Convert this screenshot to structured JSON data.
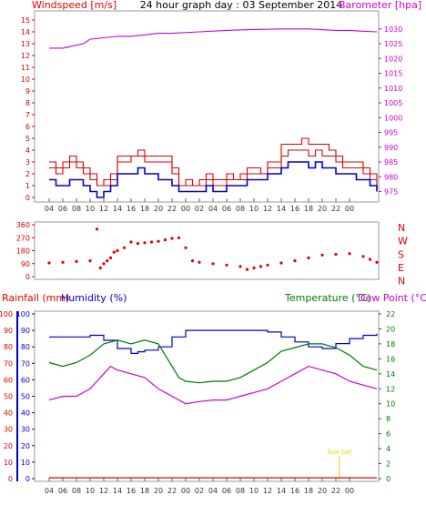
{
  "chart_data": [
    {
      "type": "line",
      "title": "24 hour graph day : 03 September 2014",
      "ylabel": "Windspeed [m/s]",
      "y2label": "Barometer [hpa]",
      "x_ticks": [
        "04",
        "06",
        "08",
        "10",
        "12",
        "14",
        "16",
        "18",
        "20",
        "22",
        "00",
        "02",
        "04",
        "06",
        "08",
        "10",
        "12",
        "14",
        "16",
        "18",
        "20",
        "22",
        "00"
      ],
      "ylim": [
        0,
        15
      ],
      "y2lim": [
        973,
        1033
      ],
      "y_ticks": [
        "0",
        "1",
        "2",
        "3",
        "4",
        "5",
        "6",
        "7",
        "8",
        "9",
        "10",
        "11",
        "12",
        "13",
        "14",
        "15"
      ],
      "y2_ticks": [
        "975",
        "980",
        "985",
        "990",
        "995",
        "1000",
        "1005",
        "1010",
        "1015",
        "1020",
        "1025",
        "1030"
      ],
      "colors": {
        "wind": "#dd0000",
        "gust": "#dd0000",
        "avgwind": "#0000cc",
        "baro": "#cc00cc",
        "axis_left": "#dd0000",
        "axis_right": "#cc00cc"
      },
      "series": [
        {
          "key": "baro",
          "axis": "right",
          "x": [
            0,
            2,
            3,
            5,
            6,
            8,
            10,
            12,
            14,
            16,
            18,
            22,
            26,
            30,
            34,
            38,
            42,
            44,
            46,
            48
          ],
          "values": [
            1023.5,
            1023.5,
            1024,
            1025,
            1026.5,
            1027,
            1027.5,
            1027.5,
            1028,
            1028.5,
            1028.5,
            1029,
            1029.5,
            1029.8,
            1030,
            1030,
            1029.5,
            1029.5,
            1029.2,
            1029
          ]
        },
        {
          "key": "gust",
          "axis": "left",
          "x": [
            0,
            1,
            2,
            3,
            4,
            5,
            6,
            7,
            8,
            9,
            10,
            11,
            12,
            13,
            14,
            15,
            16,
            17,
            18,
            19,
            20,
            21,
            22,
            23,
            24,
            25,
            26,
            27,
            28,
            29,
            30,
            31,
            32,
            33,
            34,
            35,
            36,
            37,
            38,
            39,
            40,
            41,
            42,
            43,
            44,
            45,
            46,
            47,
            48
          ],
          "values": [
            3,
            2.5,
            3,
            3.5,
            3,
            2.5,
            2,
            1,
            1.5,
            2,
            3.5,
            3.5,
            3.5,
            4,
            3.5,
            3.5,
            3.5,
            3.5,
            2.5,
            1,
            1.5,
            1,
            1.5,
            2,
            1.5,
            1.5,
            2,
            1.5,
            2,
            2.5,
            2.5,
            2,
            3,
            3,
            4.5,
            4.5,
            4.5,
            5,
            4.5,
            4.5,
            4.5,
            4,
            3.5,
            3,
            3,
            3,
            2.5,
            2,
            1.5
          ]
        },
        {
          "key": "wind",
          "axis": "left",
          "x": [
            0,
            1,
            2,
            3,
            4,
            5,
            6,
            7,
            8,
            9,
            10,
            11,
            12,
            13,
            14,
            15,
            16,
            17,
            18,
            19,
            20,
            21,
            22,
            23,
            24,
            25,
            26,
            27,
            28,
            29,
            30,
            31,
            32,
            33,
            34,
            35,
            36,
            37,
            38,
            39,
            40,
            41,
            42,
            43,
            44,
            45,
            46,
            47,
            48
          ],
          "values": [
            2.5,
            2,
            2.5,
            3,
            2.5,
            2,
            1.5,
            1,
            1,
            1.5,
            3,
            3,
            3.5,
            3.5,
            3,
            3,
            3,
            3,
            2,
            1,
            1,
            1,
            1,
            1.5,
            1,
            1,
            1.5,
            1.5,
            1.5,
            2,
            2,
            2,
            2.5,
            2.5,
            3.5,
            4,
            4,
            4,
            3.5,
            4,
            3.5,
            3.5,
            3,
            2.5,
            2.5,
            2.5,
            2,
            1.5,
            1
          ]
        },
        {
          "key": "avgwind",
          "axis": "left",
          "x": [
            0,
            1,
            2,
            3,
            4,
            5,
            6,
            7,
            8,
            9,
            10,
            11,
            12,
            13,
            14,
            15,
            16,
            17,
            18,
            19,
            20,
            21,
            22,
            23,
            24,
            25,
            26,
            27,
            28,
            29,
            30,
            31,
            32,
            33,
            34,
            35,
            36,
            37,
            38,
            39,
            40,
            41,
            42,
            43,
            44,
            45,
            46,
            47,
            48
          ],
          "values": [
            1.5,
            1,
            1,
            1.5,
            1.5,
            1,
            0.5,
            0,
            0.5,
            1,
            2,
            2,
            2,
            2.5,
            2,
            2,
            1.5,
            1.5,
            1,
            0.5,
            0.5,
            0.5,
            0.5,
            1,
            0.5,
            0.5,
            1,
            1,
            1,
            1.5,
            1.5,
            1.5,
            2,
            2,
            2.5,
            3,
            3,
            3,
            2.5,
            3,
            2.5,
            2.5,
            2,
            2,
            2,
            1.5,
            1.5,
            1,
            0.5
          ]
        }
      ]
    },
    {
      "type": "scatter",
      "title": "",
      "ylabel": "",
      "ylim": [
        0,
        360
      ],
      "y_ticks": [
        "0",
        "90",
        "180",
        "270",
        "360"
      ],
      "compass": [
        "N",
        "W",
        "S",
        "E",
        "N"
      ],
      "colors": {
        "points": "#dd0000",
        "axis_left": "#dd0000",
        "compass": "#dd0000"
      },
      "x_ticks": [],
      "series": [
        {
          "key": "winddir",
          "x": [
            0,
            2,
            4,
            6,
            7,
            7.5,
            8,
            8.5,
            9,
            9.5,
            10,
            11,
            12,
            13,
            14,
            15,
            16,
            17,
            18,
            19,
            20,
            21,
            22,
            24,
            26,
            28,
            29,
            30,
            31,
            32,
            34,
            36,
            38,
            40,
            42,
            44,
            46,
            47,
            48
          ],
          "values": [
            95,
            100,
            105,
            110,
            330,
            60,
            90,
            110,
            130,
            170,
            180,
            200,
            240,
            230,
            235,
            240,
            245,
            255,
            265,
            270,
            200,
            110,
            100,
            90,
            80,
            70,
            50,
            60,
            70,
            80,
            95,
            110,
            130,
            150,
            155,
            160,
            140,
            120,
            100
          ]
        }
      ]
    },
    {
      "type": "line",
      "title": "",
      "legend": [
        "Rainfall (mm)",
        "Humidity (%)",
        "Temperature (°C)",
        "Dew Point (°C)"
      ],
      "x_ticks": [
        "04",
        "06",
        "08",
        "10",
        "12",
        "14",
        "16",
        "18",
        "20",
        "22",
        "00",
        "02",
        "04",
        "06",
        "08",
        "10",
        "12",
        "14",
        "16",
        "18",
        "20",
        "22",
        "00"
      ],
      "ylim": [
        0,
        100
      ],
      "y_ticks_rain": [
        "0",
        "10",
        "20",
        "30",
        "40",
        "50",
        "60",
        "70",
        "80",
        "90",
        "100"
      ],
      "y_ticks_hum": [
        "0",
        "10",
        "20",
        "30",
        "40",
        "50",
        "60",
        "70",
        "80",
        "90",
        "100"
      ],
      "y2lim": [
        0,
        22
      ],
      "y2_ticks": [
        "0",
        "2",
        "4",
        "6",
        "8",
        "10",
        "12",
        "14",
        "16",
        "18",
        "20",
        "22"
      ],
      "annotations": [
        "Sun Set"
      ],
      "colors": {
        "rain": "#dd0000",
        "humidity": "#0000cc",
        "temperature": "#007700",
        "dewpoint": "#cc00cc",
        "sunset": "#e8d000"
      },
      "series": [
        {
          "key": "rain",
          "axis": "left",
          "x": [
            0,
            48
          ],
          "values": [
            0.5,
            0.5
          ]
        },
        {
          "key": "humidity",
          "axis": "left",
          "x": [
            0,
            4,
            6,
            8,
            10,
            12,
            13,
            14,
            16,
            18,
            20,
            22,
            24,
            26,
            28,
            30,
            32,
            34,
            36,
            38,
            40,
            42,
            44,
            46,
            48
          ],
          "values": [
            86,
            86,
            87,
            84,
            79,
            76,
            77,
            78,
            80,
            86,
            90,
            90,
            90,
            90,
            90,
            90,
            89,
            86,
            83,
            80,
            79,
            82,
            85,
            87,
            88
          ]
        },
        {
          "key": "temperature",
          "axis": "right",
          "x": [
            0,
            2,
            4,
            6,
            8,
            10,
            12,
            14,
            16,
            18,
            19,
            20,
            22,
            24,
            26,
            28,
            30,
            32,
            34,
            36,
            38,
            40,
            42,
            44,
            46,
            48
          ],
          "values": [
            15.5,
            15,
            15.5,
            16.5,
            18,
            18.5,
            18,
            18.5,
            18,
            15,
            13.5,
            13,
            12.8,
            13,
            13,
            13.5,
            14.5,
            15.5,
            17,
            17.5,
            18,
            18,
            17.5,
            16.5,
            15,
            14.5
          ]
        },
        {
          "key": "dewpoint",
          "axis": "right",
          "x": [
            0,
            2,
            4,
            5,
            6,
            7,
            8,
            9,
            10,
            12,
            14,
            16,
            18,
            20,
            22,
            24,
            26,
            28,
            30,
            32,
            34,
            36,
            38,
            40,
            42,
            44,
            46,
            48
          ],
          "values": [
            10.5,
            11,
            11,
            11.5,
            12,
            13,
            14,
            15,
            14.5,
            14,
            13.5,
            12,
            11,
            10,
            10.3,
            10.5,
            10.5,
            11,
            11.5,
            12,
            13,
            14,
            15,
            14.5,
            14,
            13,
            12.5,
            12
          ]
        }
      ]
    }
  ]
}
